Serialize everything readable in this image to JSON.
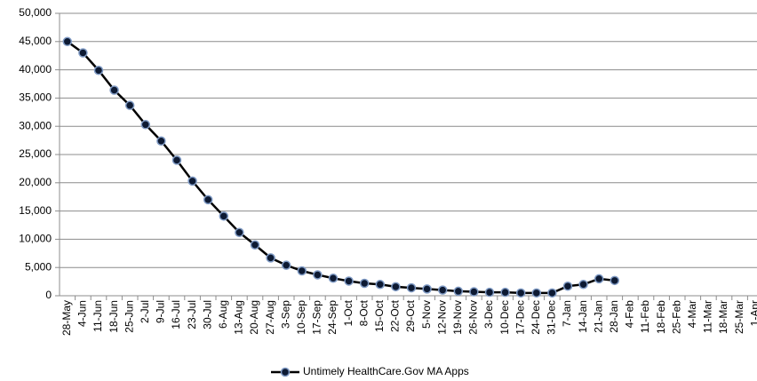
{
  "chart_data": {
    "type": "line",
    "categories": [
      "28-May",
      "4-Jun",
      "11-Jun",
      "18-Jun",
      "25-Jun",
      "2-Jul",
      "9-Jul",
      "16-Jul",
      "23-Jul",
      "30-Jul",
      "6-Aug",
      "13-Aug",
      "20-Aug",
      "27-Aug",
      "3-Sep",
      "10-Sep",
      "17-Sep",
      "24-Sep",
      "1-Oct",
      "8-Oct",
      "15-Oct",
      "22-Oct",
      "29-Oct",
      "5-Nov",
      "12-Nov",
      "19-Nov",
      "26-Nov",
      "3-Dec",
      "10-Dec",
      "17-Dec",
      "24-Dec",
      "31-Dec",
      "7-Jan",
      "14-Jan",
      "21-Jan",
      "28-Jan",
      "4-Feb",
      "11-Feb",
      "18-Feb",
      "25-Feb",
      "4-Mar",
      "11-Mar",
      "18-Mar",
      "25-Mar",
      "1-Apr"
    ],
    "series": [
      {
        "name": "Untimely HealthCare.Gov MA Apps",
        "color": "#000000",
        "values": [
          45000,
          43000,
          39900,
          36400,
          33700,
          30300,
          27400,
          24000,
          20300,
          17000,
          14100,
          11200,
          9000,
          6700,
          5400,
          4400,
          3700,
          3100,
          2600,
          2200,
          2000,
          1600,
          1400,
          1200,
          1000,
          800,
          700,
          600,
          600,
          500,
          500,
          500,
          1700,
          2000,
          3000,
          2700,
          null,
          null,
          null,
          null,
          null,
          null,
          null,
          null,
          null
        ]
      }
    ],
    "ylim": [
      0,
      50000
    ],
    "yticks": [
      0,
      {
        "value": 5000,
        "label": "5,000"
      },
      {
        "value": 10000,
        "label": "10,000"
      },
      {
        "value": 15000,
        "label": "15,000"
      },
      {
        "value": 20000,
        "label": "20,000"
      },
      {
        "value": 25000,
        "label": "25,000"
      },
      {
        "value": 30000,
        "label": "30,000"
      },
      {
        "value": 35000,
        "label": "35,000"
      },
      {
        "value": 40000,
        "label": "40,000"
      },
      {
        "value": 45000,
        "label": "45,000"
      },
      {
        "value": 50000,
        "label": "50,000"
      }
    ],
    "grid": true,
    "legend": "bottom"
  }
}
